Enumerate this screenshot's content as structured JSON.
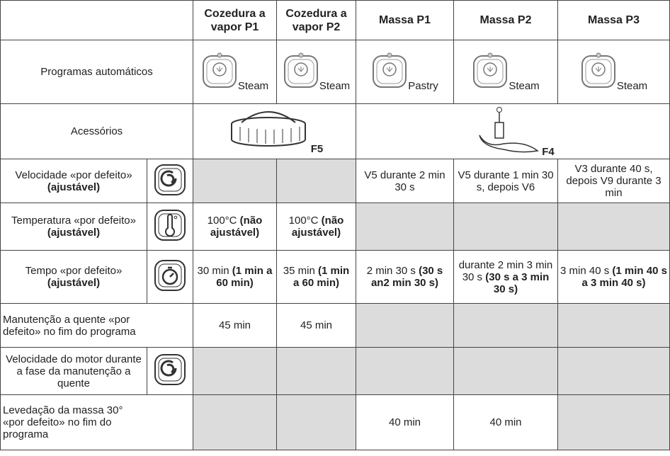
{
  "header": [
    "Cozedura a vapor P1",
    "Cozedura a vapor P2",
    "Massa P1",
    "Massa P2",
    "Massa P3"
  ],
  "programs": {
    "label": "Programas automáticos",
    "buttons": [
      "Steam",
      "Steam",
      "Pastry",
      "Steam",
      "Steam"
    ]
  },
  "accessories": {
    "label": "Acessórios",
    "items": [
      "F5",
      "F4"
    ]
  },
  "rows": [
    {
      "label": {
        "plain": "Velocidade «por defeito» ",
        "bold": "(ajustável)"
      },
      "cells": [
        null,
        null,
        {
          "plain": "V5 durante 2 min 30 s"
        },
        {
          "plain": "V5 durante 1 min 30 s, depois V6"
        },
        {
          "plain": "V3 durante 40 s, depois V9 durante 3 min"
        }
      ]
    },
    {
      "label": {
        "plain": "Temperatura «por defeito» ",
        "bold": "(ajustável)"
      },
      "cells": [
        {
          "plain": "100°C ",
          "bold": "(não ajustável)"
        },
        {
          "plain": "100°C ",
          "bold": "(não ajustável)"
        },
        null,
        null,
        null
      ]
    },
    {
      "label": {
        "plain": "Tempo «por defeito» ",
        "bold": "(ajustável)"
      },
      "cells": [
        {
          "plain": "30 min ",
          "bold": "(1 min a 60 min)"
        },
        {
          "plain": "35 min ",
          "bold": "(1 min a 60 min)"
        },
        {
          "plain": "2 min 30 s ",
          "bold": "(30 s an2 min 30 s)"
        },
        {
          "plain": "durante 2 min 3 min 30 s ",
          "bold": "(30 s a 3 min 30 s)"
        },
        {
          "plain": "3 min 40 s ",
          "bold": "(1 min 40 s a 3 min 40 s)"
        }
      ]
    },
    {
      "label": {
        "plain": "Manutenção a quente «por defeito» no fim do programa"
      },
      "cells": [
        {
          "plain": "45 min"
        },
        {
          "plain": "45 min"
        },
        null,
        null,
        null
      ]
    },
    {
      "label": {
        "plain": "Velocidade do motor durante a fase da manutenção a quente"
      },
      "cells": [
        null,
        null,
        null,
        null,
        null
      ]
    },
    {
      "label": {
        "plain": "Levedação da massa 30° «por defeito» no fim do programa"
      },
      "cells": [
        null,
        null,
        {
          "plain": "40 min"
        },
        {
          "plain": "40 min"
        },
        null
      ]
    }
  ]
}
